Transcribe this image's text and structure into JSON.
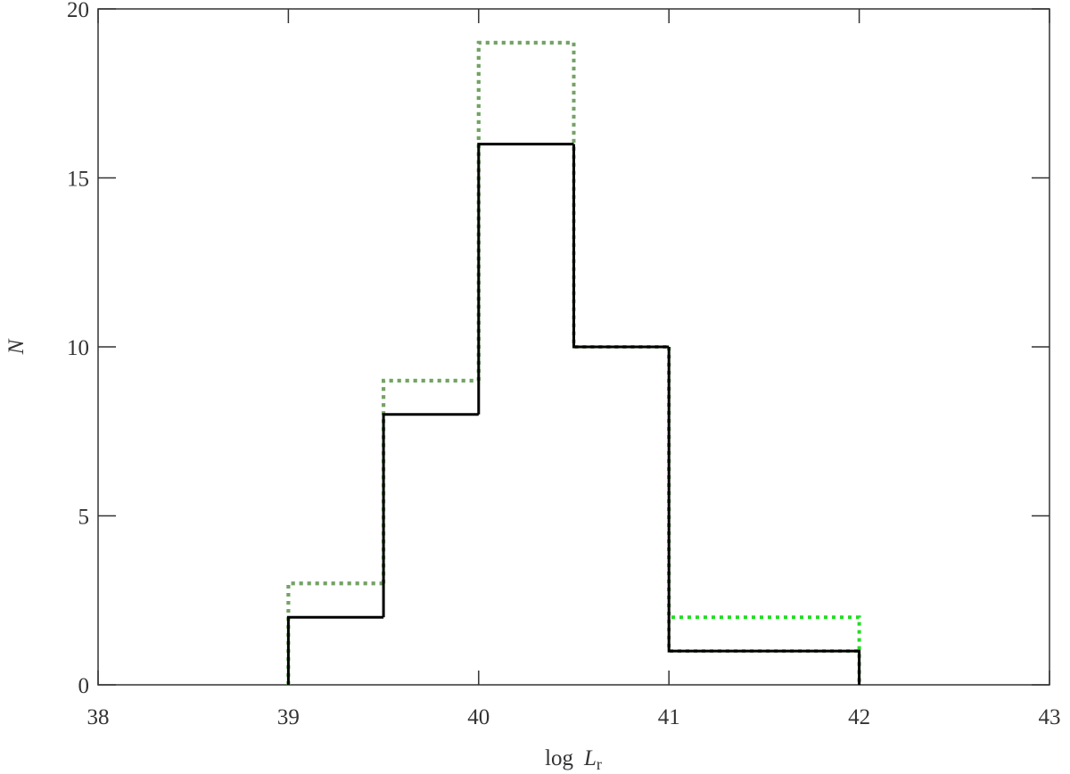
{
  "chart_data": {
    "type": "histogram",
    "xlabel": [
      "log",
      "L",
      "r"
    ],
    "ylabel": "N",
    "bins": [
      39,
      39.5,
      40,
      40.5,
      41,
      42
    ],
    "series": [
      {
        "color": "#22dd22",
        "linestyle": "dotted",
        "values": [
          3,
          9,
          19,
          10,
          2
        ]
      },
      {
        "color": "#7a9e6a",
        "linestyle": "dotted",
        "values": [
          3,
          9,
          19,
          10,
          1
        ]
      },
      {
        "color": "#000000",
        "linestyle": "solid",
        "values": [
          2,
          8,
          16,
          10,
          1
        ]
      }
    ],
    "xlim": [
      38,
      43
    ],
    "xticks": [
      38,
      39,
      40,
      41,
      42,
      43
    ],
    "ylim": [
      0,
      20
    ],
    "yticks": [
      0,
      5,
      10,
      15,
      20
    ]
  }
}
